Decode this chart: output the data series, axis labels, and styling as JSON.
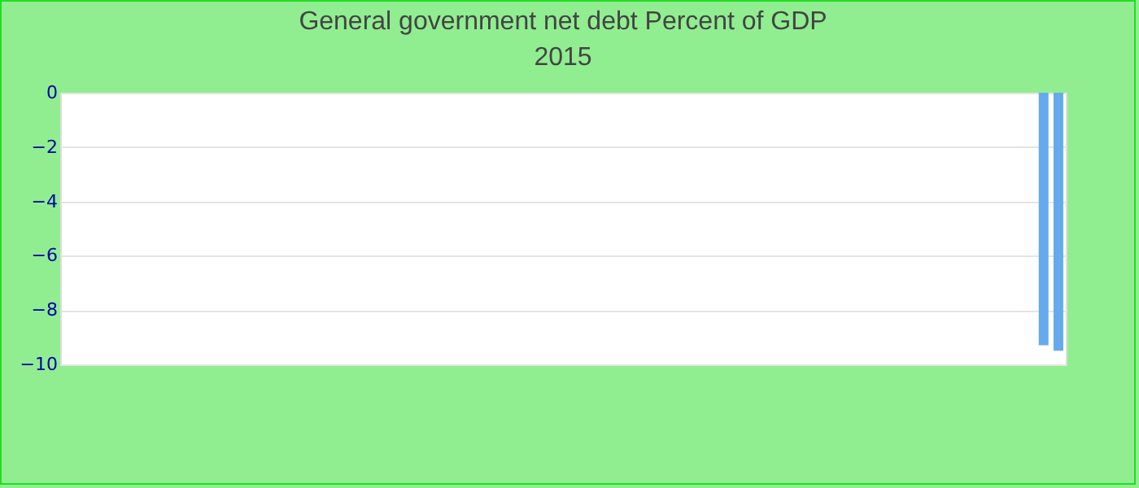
{
  "chart_data": {
    "type": "bar",
    "title": "General government net debt  Percent of GDP",
    "subtitle": "2015",
    "categories": [
      null,
      null,
      null,
      null,
      null,
      null,
      null,
      null,
      null,
      null,
      null,
      null,
      null,
      null,
      null,
      null,
      null,
      null,
      null,
      null,
      null,
      null,
      null,
      null,
      null,
      null,
      null,
      null,
      null,
      null,
      null,
      null,
      null,
      null,
      null,
      null,
      null,
      null,
      null,
      null,
      null,
      null,
      null,
      null,
      null,
      null,
      null,
      null,
      null,
      null,
      null,
      null,
      null,
      null,
      null,
      null,
      null,
      null,
      null,
      null,
      null,
      null,
      null,
      null,
      null,
      null,
      null,
      null
    ],
    "values": [
      null,
      null,
      null,
      null,
      null,
      null,
      null,
      null,
      null,
      null,
      null,
      null,
      null,
      null,
      null,
      null,
      null,
      null,
      null,
      null,
      null,
      null,
      null,
      null,
      null,
      null,
      null,
      null,
      null,
      null,
      null,
      null,
      null,
      null,
      null,
      null,
      null,
      null,
      null,
      null,
      null,
      null,
      null,
      null,
      null,
      null,
      null,
      null,
      null,
      null,
      null,
      null,
      null,
      null,
      null,
      null,
      null,
      null,
      null,
      null,
      null,
      null,
      null,
      null,
      null,
      null,
      -9.3,
      -9.5
    ],
    "color": "#66aaee",
    "ylim": [
      -10,
      0
    ],
    "yticks": [
      0,
      -2,
      -4,
      -6,
      -8,
      -10
    ],
    "grid": "y"
  }
}
